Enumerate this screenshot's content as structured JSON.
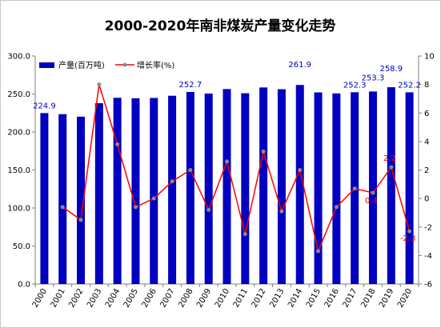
{
  "chart_data": {
    "type": "bar+line",
    "title": "2000-2020年南非煤炭产量变化走势",
    "categories": [
      "2000",
      "2001",
      "2002",
      "2003",
      "2004",
      "2005",
      "2006",
      "2007",
      "2008",
      "2009",
      "2010",
      "2011",
      "2012",
      "2013",
      "2014",
      "2015",
      "2016",
      "2017",
      "2018",
      "2019",
      "2020"
    ],
    "series": [
      {
        "name": "产量(百万吨)",
        "type": "bar",
        "axis": "left",
        "color": "#0000c0",
        "values": [
          224.9,
          223.5,
          220.2,
          237.9,
          245.0,
          244.4,
          244.8,
          247.7,
          252.7,
          250.6,
          256.5,
          251.0,
          258.6,
          256.3,
          261.9,
          252.1,
          250.8,
          252.3,
          253.3,
          258.9,
          252.2
        ]
      },
      {
        "name": "增长率(%)",
        "type": "line",
        "axis": "right",
        "color": "#ff0000",
        "marker_color": "#8c8c8c",
        "values": [
          null,
          -0.6,
          -1.5,
          8.0,
          3.8,
          -0.6,
          0.0,
          1.2,
          2.0,
          -0.8,
          2.6,
          -2.5,
          3.3,
          -0.9,
          2.0,
          -3.7,
          -0.6,
          0.7,
          0.4,
          2.2,
          -2.3
        ]
      }
    ],
    "bar_labels": [
      {
        "index": 0,
        "text": "224.9"
      },
      {
        "index": 8,
        "text": "252.7"
      },
      {
        "index": 14,
        "text": "261.9"
      },
      {
        "index": 17,
        "text": "252.3"
      },
      {
        "index": 18,
        "text": "253.3"
      },
      {
        "index": 19,
        "text": "258.9"
      },
      {
        "index": 20,
        "text": "252.2"
      }
    ],
    "line_labels": [
      {
        "index": 18,
        "text": "0.4"
      },
      {
        "index": 19,
        "text": "2.2"
      },
      {
        "index": 20,
        "text": "-2.3"
      }
    ],
    "y_left": {
      "min": 0,
      "max": 300,
      "ticks": [
        0,
        50,
        100,
        150,
        200,
        250,
        300
      ],
      "tick_labels": [
        "0.0",
        "50.0",
        "100.0",
        "150.0",
        "200.0",
        "250.0",
        "300.0"
      ]
    },
    "y_right": {
      "min": -6,
      "max": 10,
      "ticks": [
        -6,
        -4,
        -2,
        0,
        2,
        4,
        6,
        8,
        10
      ],
      "tick_labels": [
        "-6",
        "-4",
        "-2",
        "0",
        "2",
        "4",
        "6",
        "8",
        "10"
      ]
    },
    "grid": false,
    "legend": "top-left",
    "colors": {
      "bar": "#0000c0",
      "line": "#ff0000",
      "marker": "#8c8c8c",
      "bar_label": "#0000c0",
      "line_label": "#ff0000"
    }
  }
}
